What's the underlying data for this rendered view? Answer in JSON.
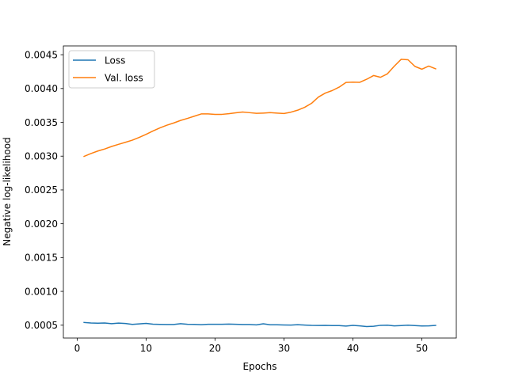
{
  "chart_data": {
    "type": "line",
    "title": "",
    "xlabel": "Epochs",
    "ylabel": "Negative log-likelihood",
    "xlim": [
      -2,
      55
    ],
    "ylim": [
      0.00031,
      0.00463
    ],
    "xticks": [
      0,
      10,
      20,
      30,
      40,
      50
    ],
    "yticks": [
      0.0005,
      0.001,
      0.0015,
      0.002,
      0.0025,
      0.003,
      0.0035,
      0.004,
      0.0045
    ],
    "xtick_labels": [
      "0",
      "10",
      "20",
      "30",
      "40",
      "50"
    ],
    "ytick_labels": [
      "0.0005",
      "0.0010",
      "0.0015",
      "0.0020",
      "0.0025",
      "0.0030",
      "0.0035",
      "0.0040",
      "0.0045"
    ],
    "grid": false,
    "legend_position": "top-left",
    "x": [
      1,
      2,
      3,
      4,
      5,
      6,
      7,
      8,
      9,
      10,
      11,
      12,
      13,
      14,
      15,
      16,
      17,
      18,
      19,
      20,
      21,
      22,
      23,
      24,
      25,
      26,
      27,
      28,
      29,
      30,
      31,
      32,
      33,
      34,
      35,
      36,
      37,
      38,
      39,
      40,
      41,
      42,
      43,
      44,
      45,
      46,
      47,
      48,
      49,
      50,
      51,
      52
    ],
    "series": [
      {
        "name": "Loss",
        "color": "#1f77b4",
        "values": [
          0.00054,
          0.000533,
          0.00053,
          0.000532,
          0.000522,
          0.000531,
          0.000525,
          0.000512,
          0.000519,
          0.000527,
          0.000515,
          0.000512,
          0.00051,
          0.00051,
          0.000522,
          0.000514,
          0.000512,
          0.000508,
          0.000514,
          0.000513,
          0.000513,
          0.000516,
          0.000514,
          0.00051,
          0.000511,
          0.000505,
          0.000521,
          0.000506,
          0.000506,
          0.000503,
          0.000502,
          0.000507,
          0.000502,
          0.000497,
          0.000496,
          0.000497,
          0.000495,
          0.000494,
          0.000487,
          0.000497,
          0.00049,
          0.00048,
          0.000484,
          0.000498,
          0.0005,
          0.00049,
          0.000494,
          0.0005,
          0.000495,
          0.000488,
          0.00049,
          0.000497
        ]
      },
      {
        "name": "Val. loss",
        "color": "#ff7f0e",
        "values": [
          0.002996,
          0.003038,
          0.003076,
          0.003106,
          0.003143,
          0.003175,
          0.003205,
          0.003236,
          0.003277,
          0.003322,
          0.003372,
          0.003417,
          0.003457,
          0.00349,
          0.003528,
          0.003558,
          0.003591,
          0.003624,
          0.003624,
          0.003617,
          0.003618,
          0.003627,
          0.003641,
          0.003653,
          0.003643,
          0.003633,
          0.003637,
          0.003643,
          0.003637,
          0.003631,
          0.00365,
          0.00368,
          0.003722,
          0.003781,
          0.003874,
          0.003933,
          0.00397,
          0.00402,
          0.00409,
          0.004094,
          0.004092,
          0.004137,
          0.004192,
          0.004166,
          0.004217,
          0.00433,
          0.004432,
          0.004425,
          0.004327,
          0.004286,
          0.004332,
          0.004291
        ]
      }
    ]
  }
}
